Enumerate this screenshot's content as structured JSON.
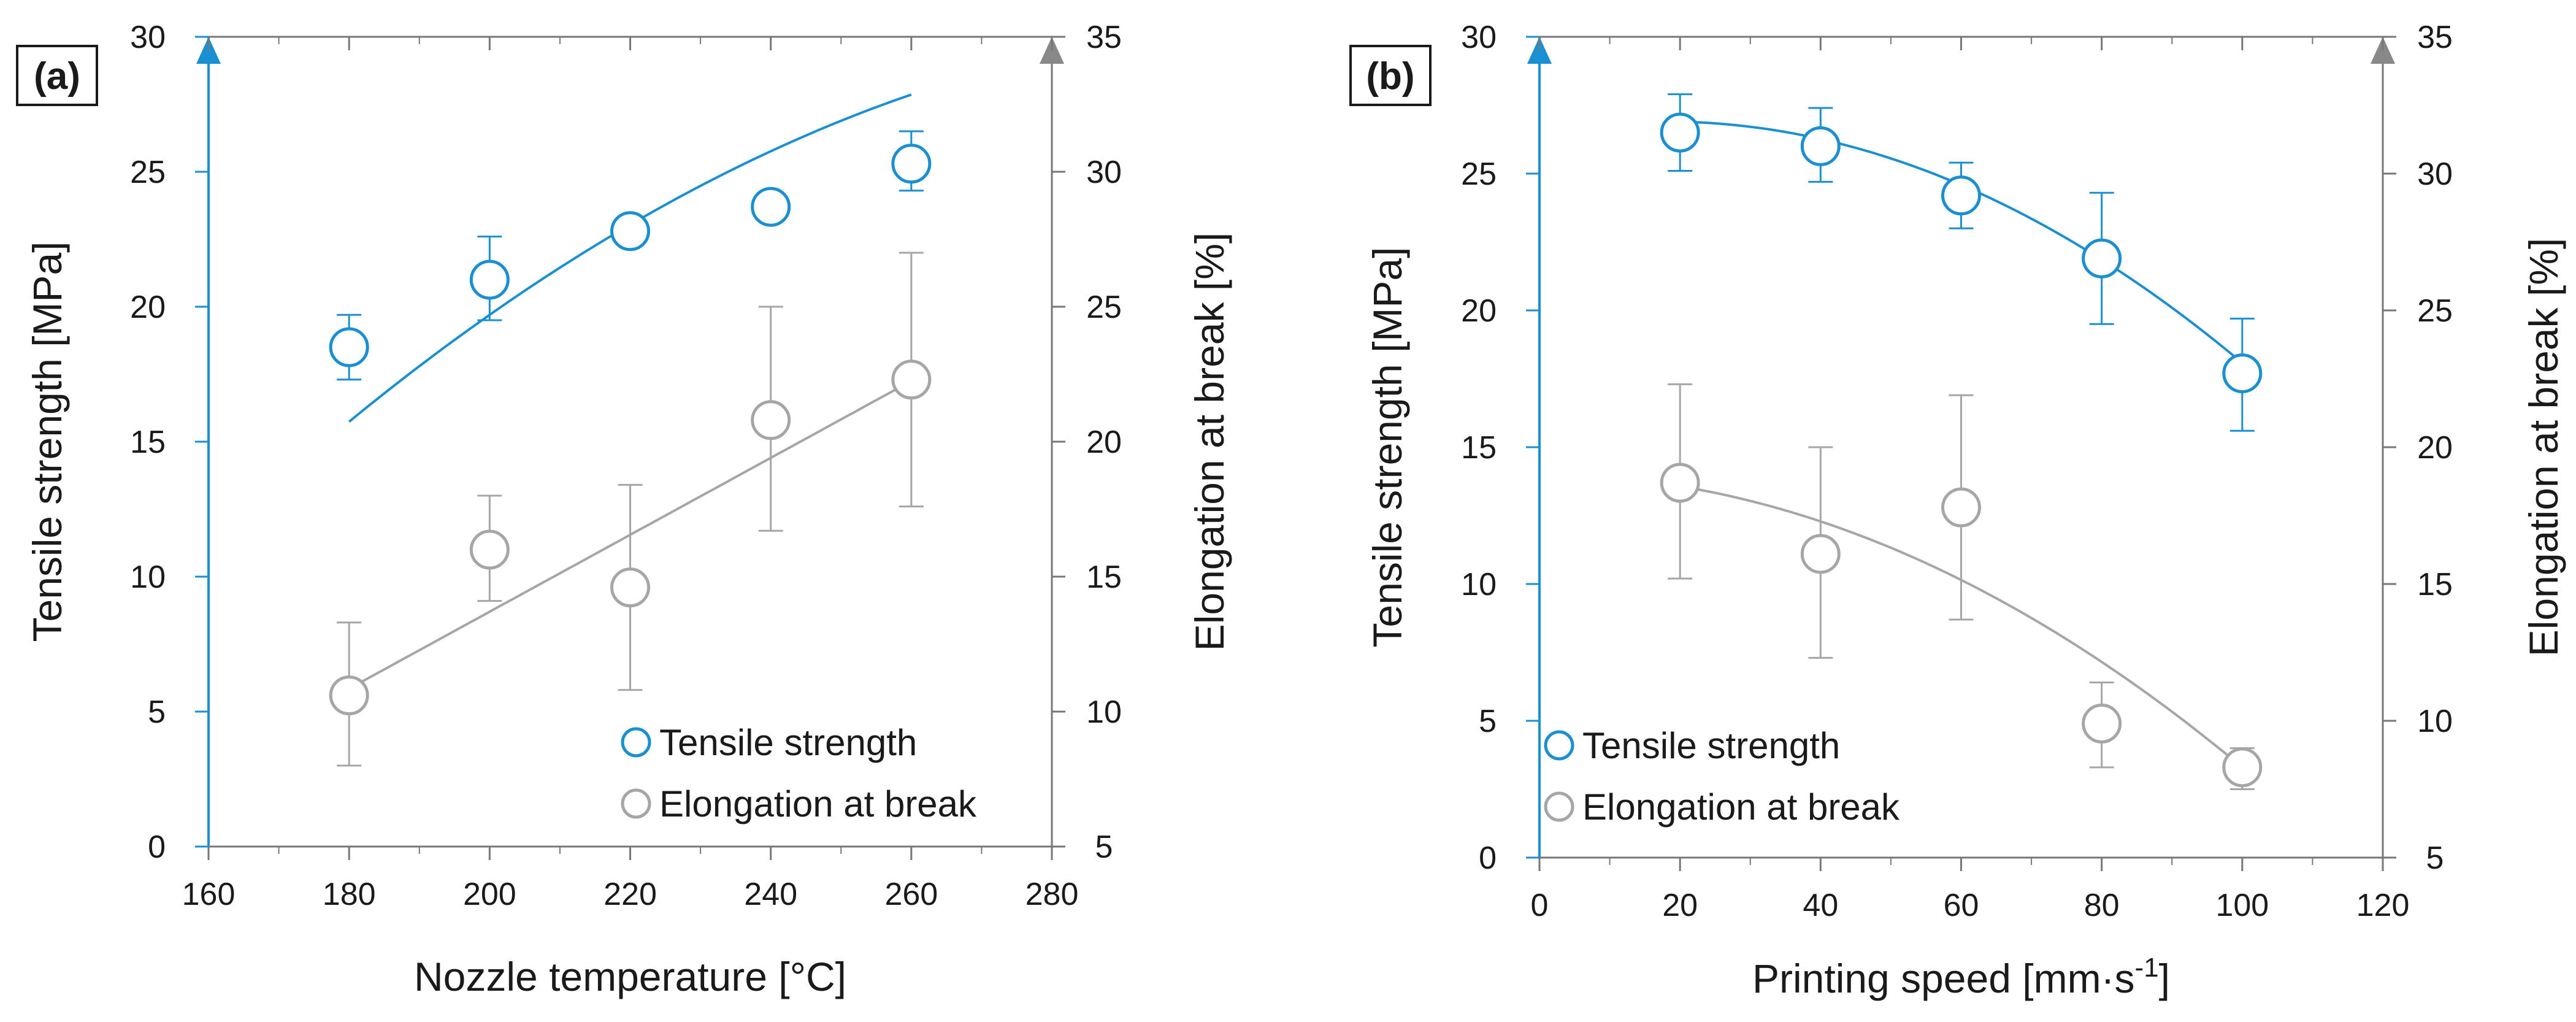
{
  "colors": {
    "tensile": "#1a8fd1",
    "elongation": "#a6a6a6",
    "axis": "#777777",
    "text": "#1a1a1a"
  },
  "chart_data": [
    {
      "type": "scatter",
      "panel_label": "(a)",
      "xlabel": "Nozzle temperature [°C]",
      "ylabel": "Tensile strength [MPa]",
      "y2label": "Elongation at break [%]",
      "xlim": [
        160,
        280
      ],
      "x_ticks": [
        160,
        180,
        200,
        220,
        240,
        260,
        280
      ],
      "ylim": [
        0,
        30
      ],
      "y_ticks": [
        0,
        5,
        10,
        15,
        20,
        25,
        30
      ],
      "y2lim": [
        5,
        35
      ],
      "y2_ticks": [
        5,
        10,
        15,
        20,
        25,
        30,
        35
      ],
      "legend_position": "bottom-right",
      "series": [
        {
          "name": "Tensile strength",
          "axis": "left",
          "color_key": "tensile",
          "x": [
            180,
            200,
            220,
            240,
            260
          ],
          "y": [
            18.5,
            21.0,
            22.8,
            23.7,
            25.3
          ],
          "err_low": [
            17.3,
            19.5,
            22.8,
            23.7,
            24.3
          ],
          "err_high": [
            19.7,
            22.6,
            22.8,
            23.7,
            26.5
          ],
          "trend": {
            "kind": "quadratic",
            "coef": [
              -47.8,
              0.4925,
              -0.000775
            ],
            "x_range": [
              180,
              260
            ]
          }
        },
        {
          "name": "Elongation at break",
          "axis": "right",
          "color_key": "elongation",
          "x": [
            180,
            200,
            220,
            240,
            260
          ],
          "y": [
            10.6,
            16.0,
            14.6,
            20.8,
            22.3
          ],
          "err_low": [
            8.0,
            14.1,
            10.8,
            16.7,
            17.6
          ],
          "err_high": [
            13.3,
            18.0,
            18.4,
            25.0,
            27.0
          ],
          "trend": {
            "kind": "linear",
            "coef": [
              -14.8,
              0.1425
            ],
            "x_range": [
              180,
              260
            ]
          }
        }
      ]
    },
    {
      "type": "scatter",
      "panel_label": "(b)",
      "xlabel": "Printing speed [mm·s",
      "xlabel_sup": "-1",
      "xlabel_end": "]",
      "ylabel": "Tensile strength [MPa]",
      "y2label": "Elongation at break [%]",
      "xlim": [
        0,
        120
      ],
      "x_ticks": [
        0,
        20,
        40,
        60,
        80,
        100,
        120
      ],
      "ylim": [
        0,
        30
      ],
      "y_ticks": [
        0,
        5,
        10,
        15,
        20,
        25,
        30
      ],
      "y2lim": [
        5,
        35
      ],
      "y2_ticks": [
        5,
        10,
        15,
        20,
        25,
        30,
        35
      ],
      "legend_position": "bottom-left",
      "series": [
        {
          "name": "Tensile strength",
          "axis": "left",
          "color_key": "tensile",
          "x": [
            20,
            40,
            60,
            80,
            100
          ],
          "y": [
            26.5,
            26.0,
            24.2,
            21.9,
            17.7
          ],
          "err_low": [
            25.1,
            24.7,
            23.0,
            19.5,
            15.6
          ],
          "err_high": [
            27.9,
            27.4,
            25.4,
            24.3,
            19.7
          ],
          "trend": {
            "kind": "quadratic",
            "coef": [
              26.48,
              0.047,
              -0.00131
            ],
            "x_range": [
              20,
              100
            ]
          }
        },
        {
          "name": "Elongation at break",
          "axis": "right",
          "color_key": "elongation",
          "x": [
            20,
            40,
            60,
            80,
            100
          ],
          "y": [
            18.7,
            16.1,
            17.8,
            9.9,
            8.3
          ],
          "err_low": [
            15.2,
            12.3,
            13.7,
            8.3,
            7.5
          ],
          "err_high": [
            22.3,
            20.0,
            21.9,
            11.4,
            9.0
          ],
          "trend": {
            "kind": "quadratic",
            "coef": [
              19.0,
              0.0,
              -0.00107
            ],
            "x_range": [
              20,
              100
            ]
          }
        }
      ]
    }
  ]
}
